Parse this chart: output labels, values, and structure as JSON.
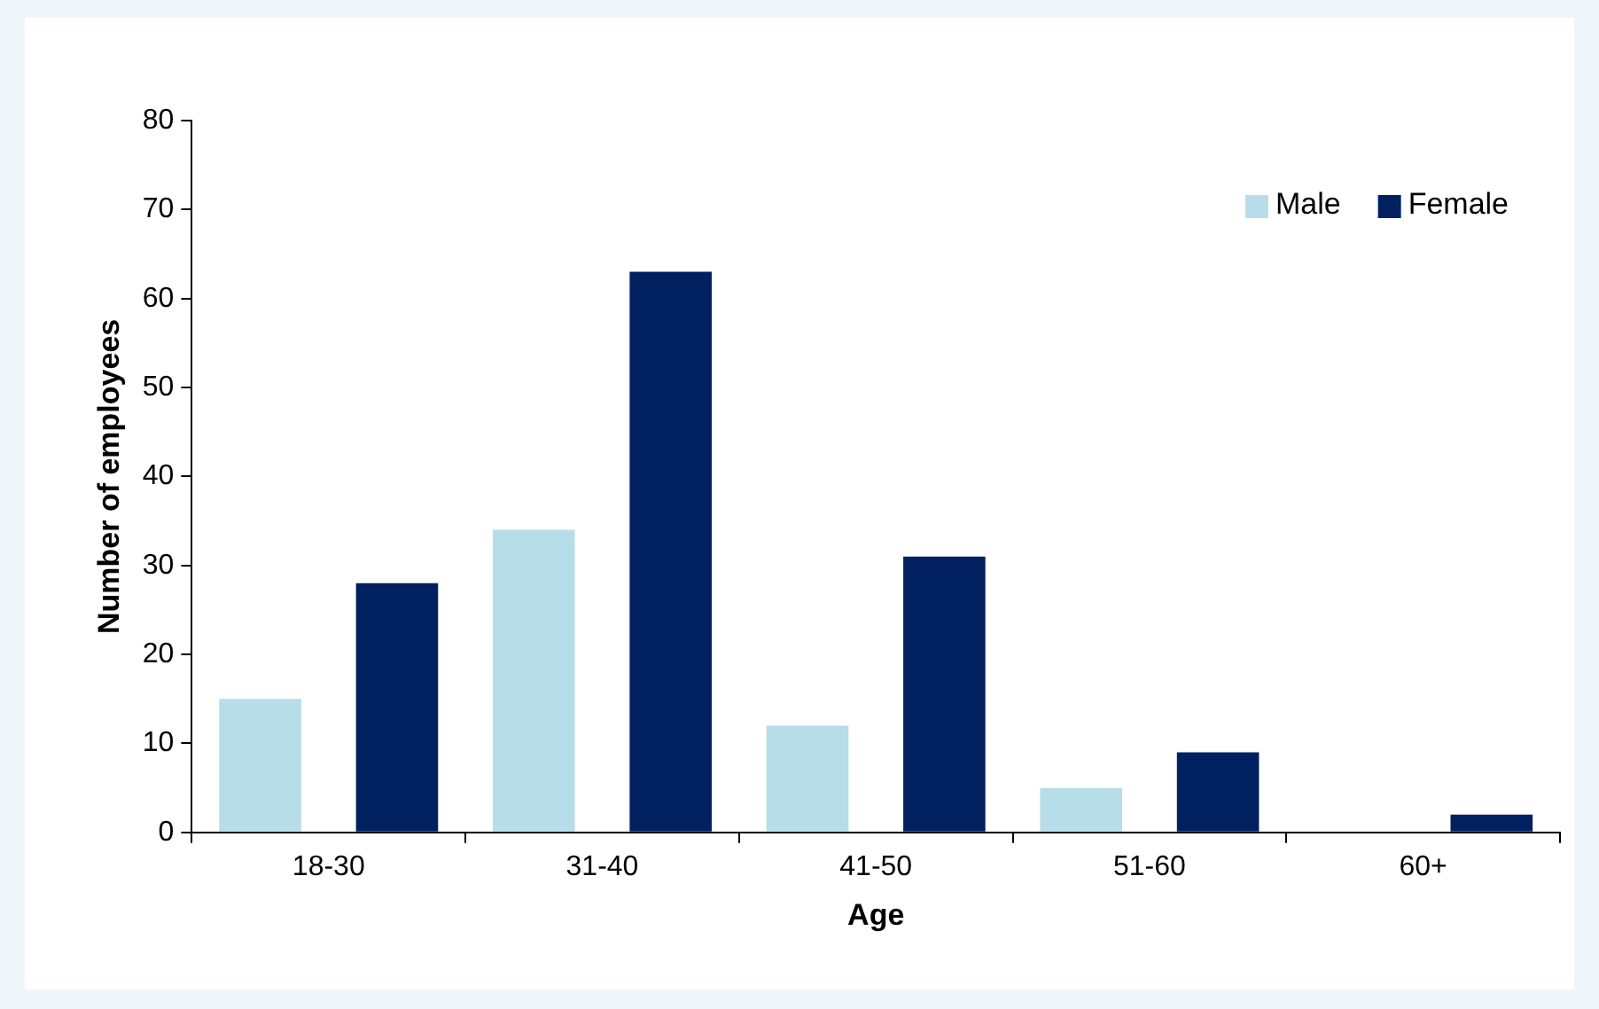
{
  "chart_data": {
    "type": "bar",
    "xlabel": "Age",
    "ylabel": "Number of employees",
    "categories": [
      "18-30",
      "31-40",
      "41-50",
      "51-60",
      "60+"
    ],
    "series": [
      {
        "name": "Male",
        "color": "#b7dde8",
        "values": [
          15,
          34,
          12,
          5,
          0
        ]
      },
      {
        "name": "Female",
        "color": "#002060",
        "values": [
          28,
          63,
          31,
          9,
          2
        ]
      }
    ],
    "ylim": [
      0,
      80
    ],
    "yticks": [
      0,
      10,
      20,
      30,
      40,
      50,
      60,
      70,
      80
    ],
    "grid": false,
    "legend": "top right"
  }
}
